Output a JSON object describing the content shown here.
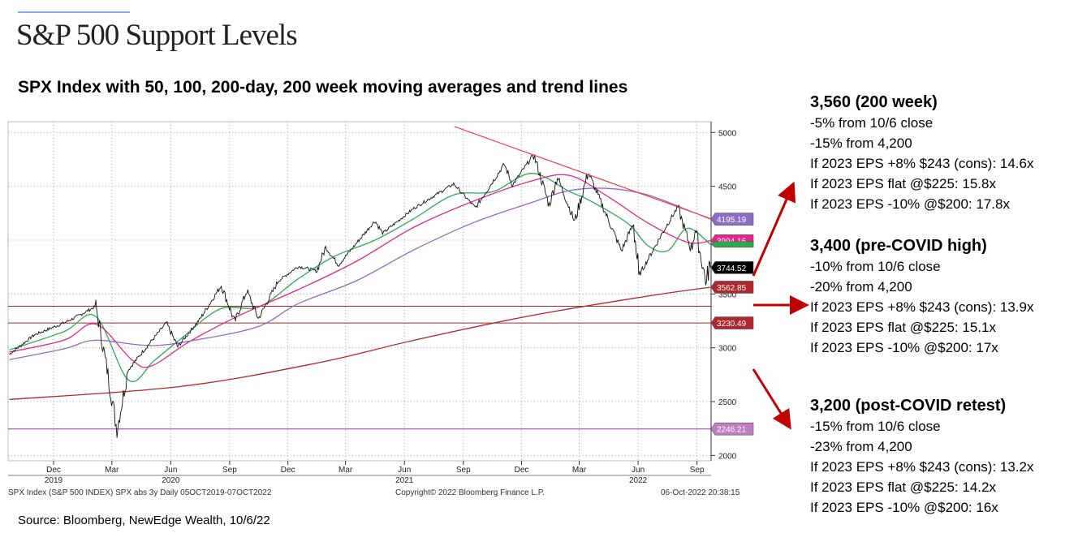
{
  "header": {
    "title": "S&P 500 Support Levels",
    "subtitle": "SPX Index with 50, 100, 200-day, 200 week moving averages and trend lines"
  },
  "footer": {
    "source": "Source: Bloomberg, NewEdge Wealth, 10/6/22"
  },
  "chart_footer": {
    "left": "SPX Index (S&P 500 INDEX) SPX abs 3y  Daily 05OCT2019-07OCT2022",
    "center": "Copyright© 2022 Bloomberg Finance L.P.",
    "right": "06-Oct-2022 20:38:15"
  },
  "chart_data": {
    "type": "line",
    "title": "SPX Index with 50, 100, 200-day, 200 week moving averages and trend lines",
    "ylim": [
      1950,
      5100
    ],
    "y_ticks": [
      2000,
      2500,
      3000,
      3500,
      4000,
      4500,
      5000
    ],
    "y_tick_labels": [
      "2000",
      "2500",
      "3000",
      "3500",
      "4000",
      "4500",
      "5000"
    ],
    "x_ticks": [
      {
        "date": "2019-12",
        "label": "Dec",
        "year": "2019"
      },
      {
        "date": "2020-03",
        "label": "Mar",
        "year": ""
      },
      {
        "date": "2020-06",
        "label": "Jun",
        "year": "2020"
      },
      {
        "date": "2020-09",
        "label": "Sep",
        "year": ""
      },
      {
        "date": "2020-12",
        "label": "Dec",
        "year": ""
      },
      {
        "date": "2021-03",
        "label": "Mar",
        "year": ""
      },
      {
        "date": "2021-06",
        "label": "Jun",
        "year": "2021"
      },
      {
        "date": "2021-09",
        "label": "Sep",
        "year": ""
      },
      {
        "date": "2021-12",
        "label": "Dec",
        "year": ""
      },
      {
        "date": "2022-03",
        "label": "Mar",
        "year": ""
      },
      {
        "date": "2022-06",
        "label": "Jun",
        "year": "2022"
      },
      {
        "date": "2022-09",
        "label": "Sep",
        "year": ""
      }
    ],
    "x_range": [
      "2019-10-05",
      "2022-10-07"
    ],
    "grid": true,
    "price": [
      [
        "2019-10-07",
        2940
      ],
      [
        "2019-11-15",
        3120
      ],
      [
        "2019-12-31",
        3230
      ],
      [
        "2020-01-24",
        3300
      ],
      [
        "2020-02-19",
        3386
      ],
      [
        "2020-03-09",
        2750
      ],
      [
        "2020-03-23",
        2237
      ],
      [
        "2020-04-09",
        2790
      ],
      [
        "2020-04-29",
        2940
      ],
      [
        "2020-06-08",
        3230
      ],
      [
        "2020-06-26",
        3010
      ],
      [
        "2020-07-31",
        3270
      ],
      [
        "2020-09-02",
        3580
      ],
      [
        "2020-09-23",
        3240
      ],
      [
        "2020-10-12",
        3530
      ],
      [
        "2020-10-30",
        3270
      ],
      [
        "2020-11-30",
        3620
      ],
      [
        "2020-12-31",
        3756
      ],
      [
        "2021-01-29",
        3714
      ],
      [
        "2021-02-12",
        3934
      ],
      [
        "2021-03-04",
        3768
      ],
      [
        "2021-04-30",
        4180
      ],
      [
        "2021-05-12",
        4063
      ],
      [
        "2021-06-30",
        4297
      ],
      [
        "2021-08-31",
        4522
      ],
      [
        "2021-10-04",
        4300
      ],
      [
        "2021-11-18",
        4705
      ],
      [
        "2021-12-01",
        4513
      ],
      [
        "2022-01-03",
        4796
      ],
      [
        "2022-01-27",
        4326
      ],
      [
        "2022-02-09",
        4587
      ],
      [
        "2022-03-08",
        4170
      ],
      [
        "2022-03-29",
        4632
      ],
      [
        "2022-05-20",
        3901
      ],
      [
        "2022-06-08",
        4160
      ],
      [
        "2022-06-16",
        3667
      ],
      [
        "2022-07-29",
        4130
      ],
      [
        "2022-08-16",
        4305
      ],
      [
        "2022-09-06",
        3908
      ],
      [
        "2022-09-12",
        4110
      ],
      [
        "2022-09-30",
        3585
      ],
      [
        "2022-10-04",
        3791
      ],
      [
        "2022-10-06",
        3744.52
      ]
    ],
    "series": [
      {
        "name": "50-day MA",
        "color": "#2ea84f",
        "values": [
          [
            "2019-10-07",
            2980
          ],
          [
            "2019-12-31",
            3150
          ],
          [
            "2020-02-19",
            3290
          ],
          [
            "2020-04-10",
            2700
          ],
          [
            "2020-05-20",
            2880
          ],
          [
            "2020-06-30",
            3080
          ],
          [
            "2020-08-31",
            3360
          ],
          [
            "2020-10-31",
            3380
          ],
          [
            "2020-12-31",
            3640
          ],
          [
            "2021-02-26",
            3850
          ],
          [
            "2021-04-30",
            4000
          ],
          [
            "2021-06-30",
            4200
          ],
          [
            "2021-08-31",
            4420
          ],
          [
            "2021-10-31",
            4450
          ],
          [
            "2021-12-31",
            4620
          ],
          [
            "2022-02-28",
            4450
          ],
          [
            "2022-03-31",
            4370
          ],
          [
            "2022-05-31",
            4150
          ],
          [
            "2022-06-30",
            3950
          ],
          [
            "2022-07-31",
            3900
          ],
          [
            "2022-08-31",
            4110
          ],
          [
            "2022-10-06",
            3960
          ]
        ]
      },
      {
        "name": "100-day MA",
        "color": "#e0288a",
        "values": [
          [
            "2019-10-07",
            2960
          ],
          [
            "2019-12-31",
            3070
          ],
          [
            "2020-02-19",
            3220
          ],
          [
            "2020-04-15",
            2890
          ],
          [
            "2020-05-15",
            2830
          ],
          [
            "2020-07-15",
            3060
          ],
          [
            "2020-09-30",
            3300
          ],
          [
            "2020-12-31",
            3540
          ],
          [
            "2021-03-31",
            3800
          ],
          [
            "2021-06-30",
            4120
          ],
          [
            "2021-09-30",
            4360
          ],
          [
            "2021-12-31",
            4550
          ],
          [
            "2022-02-28",
            4600
          ],
          [
            "2022-04-30",
            4400
          ],
          [
            "2022-06-30",
            4160
          ],
          [
            "2022-08-31",
            3980
          ],
          [
            "2022-10-06",
            3994.16
          ]
        ]
      },
      {
        "name": "200-day MA",
        "color": "#8b6cc4",
        "values": [
          [
            "2019-10-07",
            2890
          ],
          [
            "2019-12-31",
            2990
          ],
          [
            "2020-02-19",
            3070
          ],
          [
            "2020-05-15",
            3020
          ],
          [
            "2020-07-31",
            3080
          ],
          [
            "2020-10-31",
            3200
          ],
          [
            "2020-12-31",
            3410
          ],
          [
            "2021-03-31",
            3620
          ],
          [
            "2021-06-30",
            3910
          ],
          [
            "2021-09-30",
            4160
          ],
          [
            "2021-12-31",
            4350
          ],
          [
            "2022-02-28",
            4460
          ],
          [
            "2022-04-30",
            4480
          ],
          [
            "2022-06-30",
            4420
          ],
          [
            "2022-08-31",
            4280
          ],
          [
            "2022-10-06",
            4195.19
          ]
        ]
      },
      {
        "name": "200-week MA",
        "color": "#b0262b",
        "values": [
          [
            "2019-10-07",
            2520
          ],
          [
            "2020-06-30",
            2640
          ],
          [
            "2021-01-31",
            2860
          ],
          [
            "2021-06-30",
            3070
          ],
          [
            "2021-12-31",
            3300
          ],
          [
            "2022-06-30",
            3480
          ],
          [
            "2022-10-06",
            3562.85
          ]
        ]
      }
    ],
    "trend_lines": [
      {
        "color": "#e8414f",
        "from": [
          "2021-09-01",
          5055
        ],
        "to": [
          "2022-10-06",
          4200
        ]
      }
    ],
    "horizontal_lines": [
      {
        "value": 3386,
        "color": "#b0262b"
      },
      {
        "value": 3230.49,
        "color": "#b0262b"
      },
      {
        "value": 2246.21,
        "color": "#8b3a9e"
      }
    ],
    "value_labels": [
      {
        "text": "4195.19",
        "value": 4195.19,
        "bg": "#8b6cc4",
        "fg": "#ffffff"
      },
      {
        "text": "3994.16",
        "value": 3994.16,
        "bg": "#e0288a",
        "fg": "#ffffff"
      },
      {
        "text": "",
        "value": 3960,
        "bg": "#2ea84f",
        "fg": "#ffffff"
      },
      {
        "text": "3744.52",
        "value": 3744.52,
        "bg": "#000000",
        "fg": "#ffffff"
      },
      {
        "text": "3562.85",
        "value": 3562.85,
        "bg": "#b0262b",
        "fg": "#ffffff"
      },
      {
        "text": "3230.49",
        "value": 3230.49,
        "bg": "#b0262b",
        "fg": "#ffffff"
      },
      {
        "text": "2246.21",
        "value": 2246.21,
        "bg": "#c07ec0",
        "fg": "#ffffff"
      }
    ]
  },
  "annotations": [
    {
      "heading": "3,560 (200 week)",
      "lines": [
        "-5% from 10/6 close",
        "-15% from 4,200",
        "If 2023 EPS +8% $243 (cons): 14.6x",
        "If 2023 EPS flat @$225:  15.8x",
        "If 2023 EPS -10% @$200:  17.8x"
      ]
    },
    {
      "heading": "3,400 (pre-COVID high)",
      "lines": [
        "-10% from 10/6 close",
        "-20% from 4,200",
        "If 2023 EPS +8% $243 (cons): 13.9x",
        "If 2023 EPS flat @$225:  15.1x",
        "If 2023 EPS -10% @$200:  17x"
      ]
    },
    {
      "heading": "3,200 (post-COVID retest)",
      "lines": [
        "-15% from 10/6 close",
        "-23% from 4,200",
        "If 2023 EPS +8% $243 (cons): 13.2x",
        "If 2023 EPS flat @$225: 14.2x",
        "If 2023 EPS -10% @$200:  16x"
      ]
    }
  ],
  "arrow_color": "#c00000"
}
